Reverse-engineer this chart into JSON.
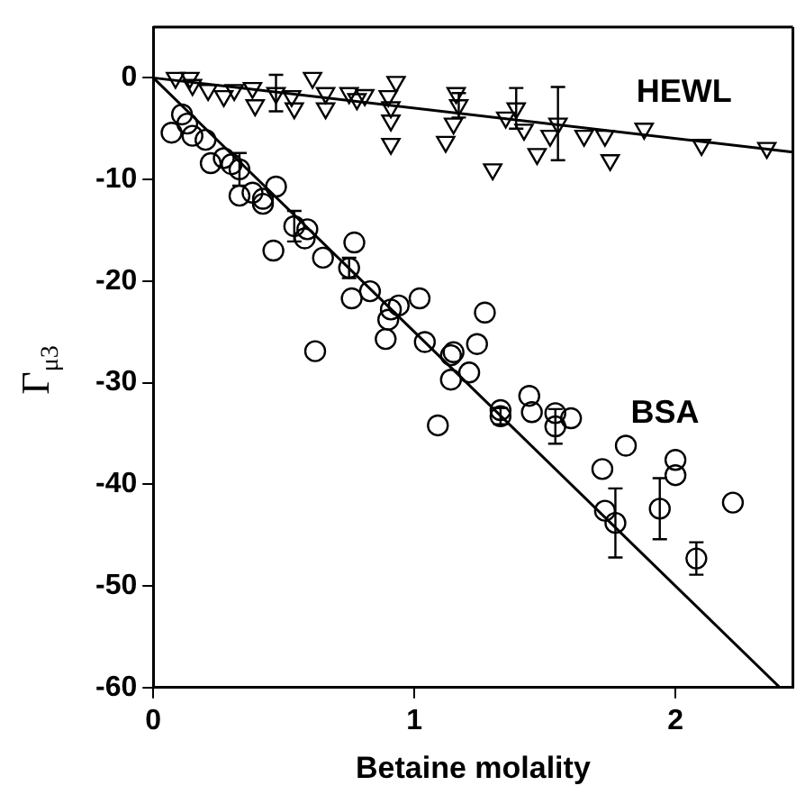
{
  "chart_data": {
    "type": "scatter",
    "xlabel": "Betaine molality",
    "ylabel": "Γ$_{μ3}$",
    "xlim": [
      0,
      2.45
    ],
    "ylim": [
      -60,
      5
    ],
    "xticks": [
      0,
      1,
      2
    ],
    "yticks": [
      -60,
      -50,
      -40,
      -30,
      -20,
      -10,
      0
    ],
    "grid": false,
    "legend": false,
    "series": [
      {
        "name": "HEWL",
        "marker": "triangle",
        "color": "#000000",
        "x": [
          0.085,
          0.14,
          0.15,
          0.21,
          0.27,
          0.31,
          0.38,
          0.39,
          0.47,
          0.53,
          0.54,
          0.61,
          0.66,
          0.66,
          0.75,
          0.78,
          0.81,
          0.9,
          0.91,
          0.91,
          0.93,
          0.91,
          1.12,
          1.15,
          1.16,
          1.17,
          1.3,
          1.35,
          1.39,
          1.42,
          1.47,
          1.52,
          1.55,
          1.65,
          1.73,
          1.75,
          1.88,
          2.1,
          2.35
        ],
        "values": [
          0,
          0,
          -0.7,
          -1.2,
          -1.8,
          -1.2,
          -1,
          -2.7,
          -1.5,
          -1.8,
          -3,
          0,
          -1.5,
          -3,
          -1.5,
          -2.1,
          -1.7,
          -1.8,
          -2.9,
          -4.2,
          -0.4,
          -6.5,
          -6.3,
          -4.5,
          -1.5,
          -2.7,
          -9,
          -3.9,
          -3,
          -5.1,
          -7.5,
          -5.7,
          -4.5,
          -5.7,
          -5.7,
          -8.1,
          -5,
          -6.6,
          -6.9
        ],
        "errors": [
          null,
          null,
          null,
          null,
          null,
          null,
          null,
          null,
          1.8,
          null,
          null,
          null,
          null,
          null,
          null,
          null,
          null,
          null,
          null,
          null,
          null,
          null,
          null,
          null,
          null,
          1.2,
          null,
          null,
          2,
          null,
          null,
          null,
          3.6,
          null,
          null,
          null,
          null,
          null,
          null
        ]
      },
      {
        "name": "BSA",
        "marker": "circle",
        "color": "#000000",
        "x": [
          0.07,
          0.11,
          0.13,
          0.15,
          0.2,
          0.22,
          0.27,
          0.3,
          0.33,
          0.33,
          0.38,
          0.42,
          0.47,
          0.54,
          0.59,
          0.42,
          0.46,
          0.58,
          0.65,
          0.62,
          0.77,
          0.75,
          0.76,
          0.83,
          0.89,
          0.9,
          0.91,
          0.94,
          1.02,
          1.04,
          1.09,
          1.14,
          1.15,
          1.14,
          1.21,
          1.24,
          1.27,
          1.33,
          1.33,
          1.44,
          1.45,
          1.54,
          1.54,
          1.6,
          1.72,
          1.81,
          1.73,
          1.77,
          1.94,
          2.0,
          2.0,
          2.22,
          2.08
        ],
        "values": [
          -5.4,
          -3.6,
          -4.5,
          -5.7,
          -6.1,
          -8.4,
          -7.9,
          -8.5,
          -9,
          -11.6,
          -11.3,
          -11.9,
          -10.7,
          -14.6,
          -14.9,
          -12.4,
          -17,
          -15.8,
          -17.7,
          -26.9,
          -16.2,
          -18.7,
          -21.7,
          -21,
          -25.7,
          -23.8,
          -22.8,
          -22.4,
          -21.7,
          -26,
          -34.2,
          -27.3,
          -27,
          -29.7,
          -29,
          -26.2,
          -23.1,
          -32.7,
          -33.3,
          -31.3,
          -32.9,
          -33,
          -34.3,
          -33.5,
          -38.5,
          -36.2,
          -42.6,
          -43.8,
          -42.4,
          -39.1,
          -37.6,
          -41.8,
          -47.3
        ],
        "errors": [
          null,
          null,
          null,
          null,
          null,
          null,
          null,
          null,
          1.6,
          null,
          null,
          null,
          null,
          1.5,
          null,
          null,
          null,
          null,
          null,
          null,
          null,
          1,
          null,
          null,
          null,
          null,
          null,
          null,
          null,
          null,
          null,
          null,
          null,
          null,
          null,
          null,
          null,
          null,
          0.8,
          null,
          null,
          null,
          1.7,
          null,
          null,
          null,
          null,
          3.4,
          3,
          null,
          null,
          null,
          1.6
        ]
      },
      {
        "type": "line",
        "marker": "none",
        "color": "#000000",
        "x": [
          0,
          2.45
        ],
        "values": [
          0,
          -7.3
        ]
      },
      {
        "type": "line",
        "marker": "none",
        "color": "#000000",
        "x": [
          0,
          2.4
        ],
        "values": [
          0,
          -60
        ]
      }
    ]
  }
}
